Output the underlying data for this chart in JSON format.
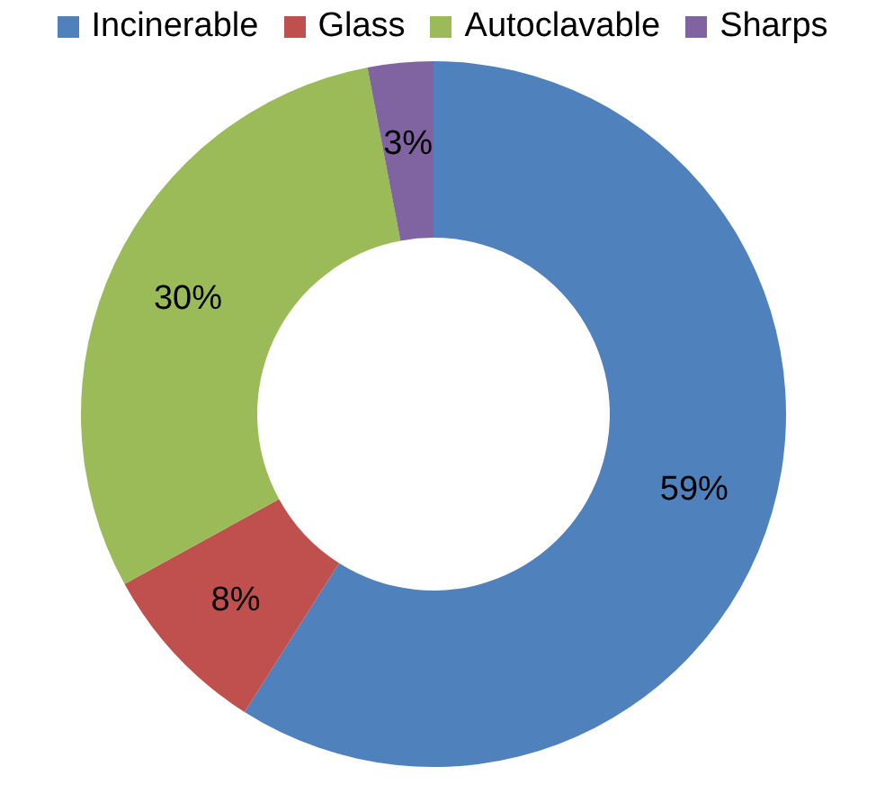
{
  "chart_data": {
    "type": "donut",
    "categories": [
      "Incinerable",
      "Glass",
      "Autoclavable",
      "Sharps"
    ],
    "values": [
      59,
      8,
      30,
      3
    ],
    "colors": [
      "#4f81bd",
      "#c0504d",
      "#9bbb59",
      "#8064a2"
    ],
    "value_labels": [
      "59%",
      "8%",
      "30%",
      "3%"
    ],
    "legend": "top"
  }
}
